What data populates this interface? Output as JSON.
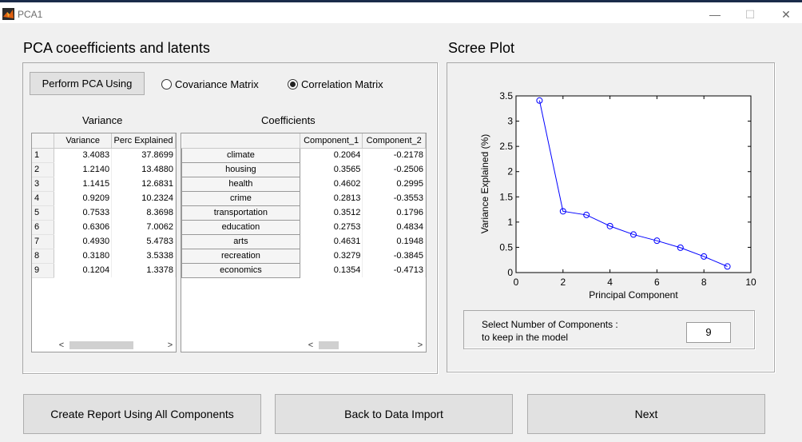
{
  "window": {
    "title": "PCA1",
    "minimize": "—",
    "maximize": "☐",
    "close": "✕"
  },
  "left": {
    "heading": "PCA coeefficients and latents",
    "perform_button": "Perform PCA Using",
    "radio_covariance": "Covariance Matrix",
    "radio_correlation": "Correlation  Matrix",
    "selected_radio": "correlation",
    "variance_title": "Variance",
    "coefficients_title": "Coefficients",
    "variance_table": {
      "columns": [
        "Variance",
        "Perc Explained"
      ],
      "rows": [
        {
          "n": "1",
          "variance": "3.4083",
          "perc": "37.8699"
        },
        {
          "n": "2",
          "variance": "1.2140",
          "perc": "13.4880"
        },
        {
          "n": "3",
          "variance": "1.1415",
          "perc": "12.6831"
        },
        {
          "n": "4",
          "variance": "0.9209",
          "perc": "10.2324"
        },
        {
          "n": "5",
          "variance": "0.7533",
          "perc": "8.3698"
        },
        {
          "n": "6",
          "variance": "0.6306",
          "perc": "7.0062"
        },
        {
          "n": "7",
          "variance": "0.4930",
          "perc": "5.4783"
        },
        {
          "n": "8",
          "variance": "0.3180",
          "perc": "3.5338"
        },
        {
          "n": "9",
          "variance": "0.1204",
          "perc": "1.3378"
        }
      ]
    },
    "coef_table": {
      "columns": [
        "Component_1",
        "Component_2"
      ],
      "rows": [
        {
          "name": "climate",
          "c1": "0.2064",
          "c2": "-0.2178"
        },
        {
          "name": "housing",
          "c1": "0.3565",
          "c2": "-0.2506"
        },
        {
          "name": "health",
          "c1": "0.4602",
          "c2": "0.2995"
        },
        {
          "name": "crime",
          "c1": "0.2813",
          "c2": "-0.3553"
        },
        {
          "name": "transportation",
          "c1": "0.3512",
          "c2": "0.1796"
        },
        {
          "name": "education",
          "c1": "0.2753",
          "c2": "0.4834"
        },
        {
          "name": "arts",
          "c1": "0.4631",
          "c2": "0.1948"
        },
        {
          "name": "recreation",
          "c1": "0.3279",
          "c2": "-0.3845"
        },
        {
          "name": "economics",
          "c1": "0.1354",
          "c2": "-0.4713"
        }
      ]
    }
  },
  "right": {
    "heading": "Scree Plot",
    "select_label_1": "Select Number of Components :",
    "select_label_2": "to keep in the model",
    "num_components": "9"
  },
  "chart_data": {
    "type": "line",
    "title": "",
    "xlabel": "Principal Component",
    "ylabel": "Variance Explained (%)",
    "xlim": [
      0,
      10
    ],
    "ylim": [
      0,
      3.5
    ],
    "xticks": [
      "0",
      "2",
      "4",
      "6",
      "8",
      "10"
    ],
    "yticks": [
      "0",
      "0.5",
      "1",
      "1.5",
      "2",
      "2.5",
      "3",
      "3.5"
    ],
    "x": [
      1,
      2,
      3,
      4,
      5,
      6,
      7,
      8,
      9
    ],
    "y": [
      3.4083,
      1.214,
      1.1415,
      0.9209,
      0.7533,
      0.6306,
      0.493,
      0.318,
      0.1204
    ],
    "series_color": "#0000ff",
    "marker": "circle",
    "grid": false
  },
  "buttons": {
    "report": "Create Report Using All Components",
    "back": "Back to Data Import",
    "next": "Next"
  }
}
